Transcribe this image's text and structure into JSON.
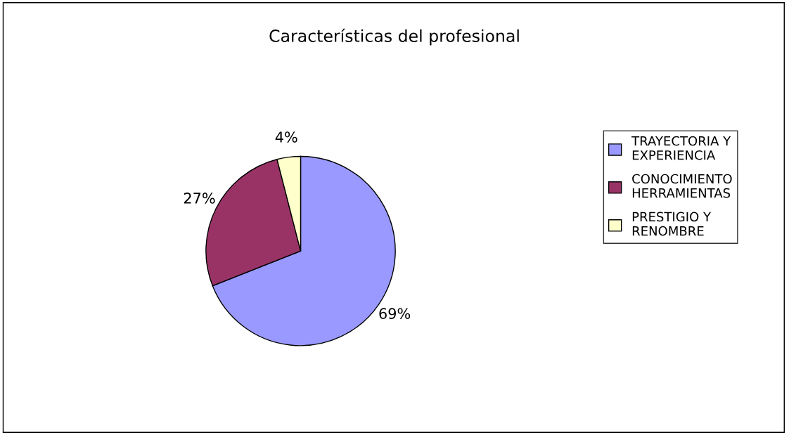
{
  "chart_data": {
    "type": "pie",
    "title": "Características del profesional",
    "categories": [
      "TRAYECTORIA Y\nEXPERIENCIA",
      "CONOCIMIENTO\nHERRAMIENTAS",
      "PRESTIGIO Y\nRENOMBRE"
    ],
    "values": [
      69,
      27,
      4
    ],
    "value_labels": [
      "69%",
      "27%",
      "4%"
    ],
    "colors": [
      "#9999ff",
      "#993366",
      "#ffffcc"
    ],
    "legend": "right"
  }
}
